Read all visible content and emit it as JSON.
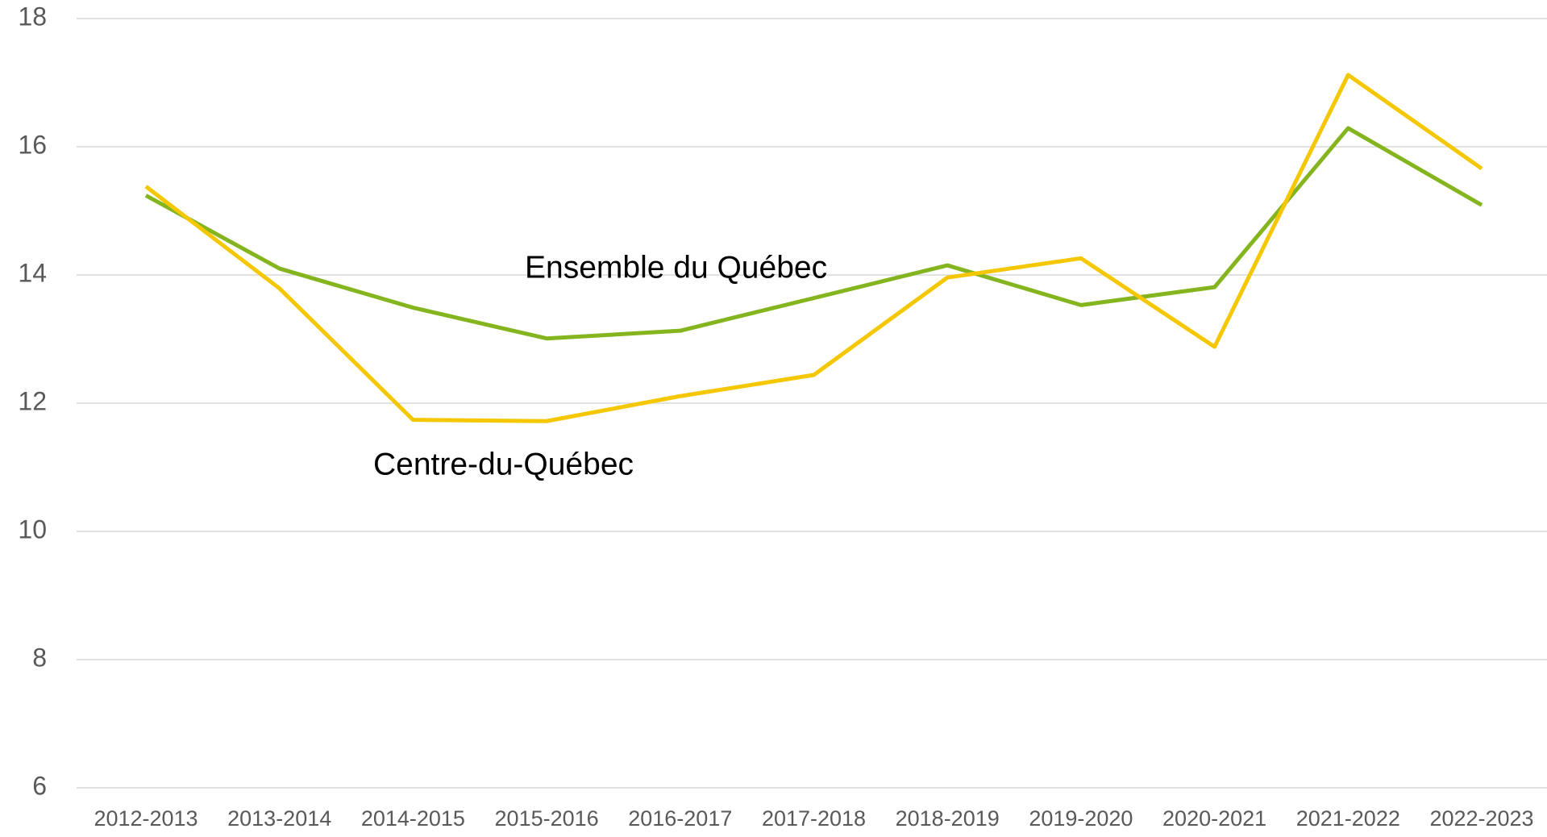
{
  "chart_data": {
    "type": "line",
    "categories": [
      "2012-2013",
      "2013-2014",
      "2014-2015",
      "2015-2016",
      "2016-2017",
      "2017-2018",
      "2018-2019",
      "2019-2020",
      "2020-2021",
      "2021-2022",
      "2022-2023"
    ],
    "series": [
      {
        "name": "Ensemble du Québec",
        "color": "#84b51e",
        "values": [
          15.24,
          14.1,
          13.49,
          13.01,
          13.13,
          13.64,
          14.15,
          13.53,
          13.81,
          16.29,
          15.09
        ]
      },
      {
        "name": "Centre-du-Québec",
        "color": "#f5c700",
        "values": [
          15.38,
          13.79,
          11.74,
          11.72,
          12.11,
          12.44,
          13.96,
          14.26,
          12.88,
          17.12,
          15.66
        ]
      }
    ],
    "ylim": [
      6,
      18
    ],
    "yticks": [
      6,
      8,
      10,
      12,
      14,
      16,
      18
    ],
    "grid": true
  }
}
